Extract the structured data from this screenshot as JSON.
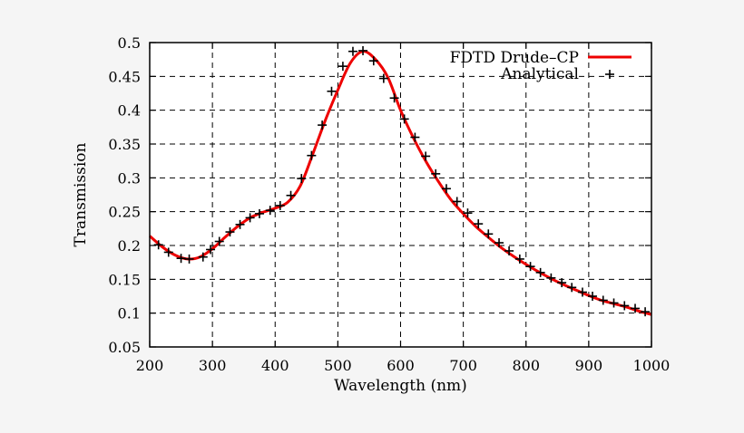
{
  "chart_data": {
    "type": "line",
    "xlabel": "Wavelength (nm)",
    "ylabel": "Transmission",
    "xlim": [
      200,
      1000
    ],
    "ylim": [
      0.05,
      0.5
    ],
    "xticks": [
      200,
      300,
      400,
      500,
      600,
      700,
      800,
      900,
      1000
    ],
    "yticks": [
      0.05,
      0.1,
      0.15,
      0.2,
      0.25,
      0.3,
      0.35,
      0.4,
      0.45,
      0.5
    ],
    "ytick_labels": [
      "0.05",
      "0.1",
      "0.15",
      "0.2",
      "0.25",
      "0.3",
      "0.35",
      "0.4",
      "0.45",
      "0.5"
    ],
    "grid": true,
    "legend_position": "top-right",
    "series": [
      {
        "name": "FDTD Drude–CP",
        "style": "line",
        "color": "#ee0000",
        "x": [
          200,
          220,
          240,
          260,
          280,
          300,
          320,
          340,
          360,
          380,
          400,
          420,
          440,
          460,
          480,
          500,
          520,
          540,
          560,
          580,
          600,
          620,
          640,
          660,
          680,
          700,
          720,
          740,
          760,
          780,
          800,
          820,
          840,
          860,
          880,
          900,
          920,
          940,
          960,
          980,
          1000
        ],
        "y": [
          0.214,
          0.198,
          0.186,
          0.18,
          0.183,
          0.195,
          0.212,
          0.228,
          0.241,
          0.249,
          0.255,
          0.264,
          0.288,
          0.335,
          0.385,
          0.43,
          0.47,
          0.487,
          0.475,
          0.448,
          0.4,
          0.36,
          0.325,
          0.295,
          0.268,
          0.247,
          0.228,
          0.212,
          0.197,
          0.184,
          0.172,
          0.161,
          0.151,
          0.142,
          0.134,
          0.126,
          0.119,
          0.114,
          0.109,
          0.103,
          0.098
        ]
      },
      {
        "name": "Analytical",
        "style": "points",
        "marker": "+",
        "color": "#000000",
        "x": [
          214,
          230,
          250,
          263,
          285,
          297,
          311,
          328,
          344,
          360,
          375,
          392,
          408,
          425,
          442,
          458,
          475,
          490,
          508,
          524,
          540,
          557,
          573,
          590,
          606,
          623,
          640,
          656,
          673,
          690,
          707,
          724,
          740,
          757,
          773,
          790,
          807,
          823,
          840,
          857,
          873,
          890,
          906,
          923,
          940,
          957,
          974,
          990
        ],
        "y": [
          0.201,
          0.19,
          0.181,
          0.18,
          0.183,
          0.194,
          0.206,
          0.22,
          0.231,
          0.241,
          0.247,
          0.252,
          0.259,
          0.274,
          0.299,
          0.333,
          0.378,
          0.428,
          0.465,
          0.487,
          0.488,
          0.473,
          0.447,
          0.418,
          0.387,
          0.36,
          0.332,
          0.306,
          0.284,
          0.265,
          0.248,
          0.232,
          0.217,
          0.204,
          0.192,
          0.18,
          0.169,
          0.16,
          0.152,
          0.145,
          0.138,
          0.131,
          0.125,
          0.119,
          0.115,
          0.111,
          0.107,
          0.102
        ]
      }
    ]
  }
}
